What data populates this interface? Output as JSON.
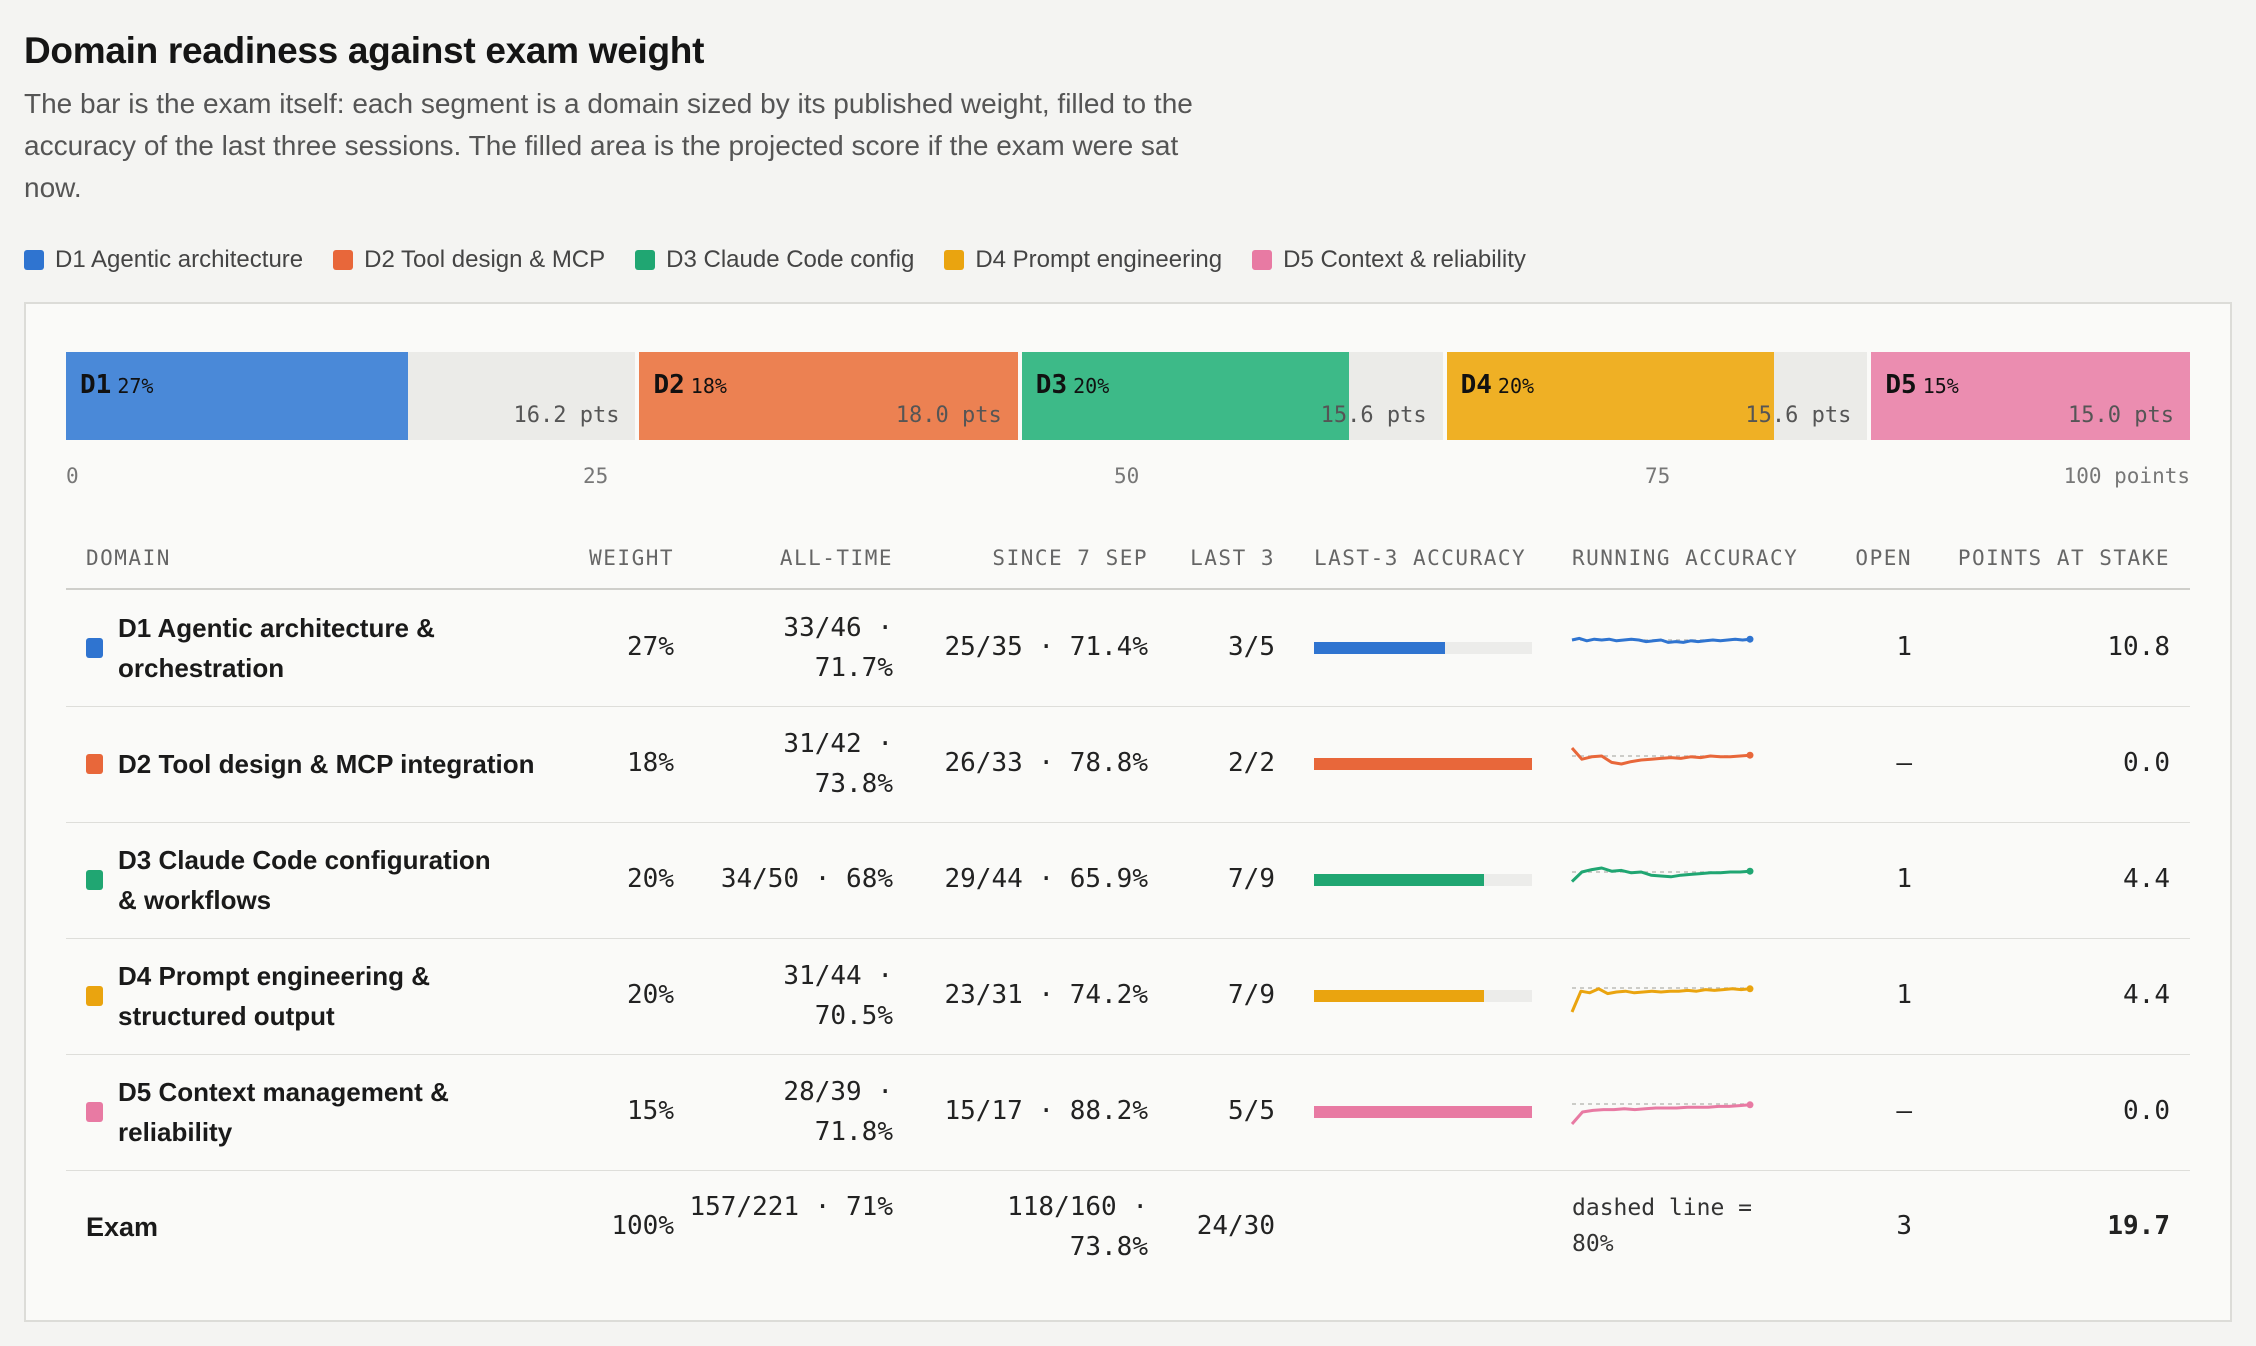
{
  "header": {
    "title": "Domain readiness against exam weight",
    "subtitle": "The bar is the exam itself: each segment is a domain sized by its published weight, filled to the accuracy of the last three sessions. The filled area is the projected score if the exam were sat now."
  },
  "legend": [
    {
      "label": "D1 Agentic architecture",
      "color": "#2f74d0"
    },
    {
      "label": "D2 Tool design & MCP",
      "color": "#e8673a"
    },
    {
      "label": "D3 Claude Code config",
      "color": "#20a672"
    },
    {
      "label": "D4 Prompt engineering",
      "color": "#eaa40f"
    },
    {
      "label": "D5 Context & reliability",
      "color": "#e87aa3"
    }
  ],
  "chart_data": {
    "type": "bar",
    "orientation": "horizontal-stacked",
    "scale": [
      0,
      100
    ],
    "axis_ticks": [
      "0",
      "25",
      "50",
      "75",
      "100 points"
    ],
    "segments": [
      {
        "code": "D1",
        "weight_label": "27%",
        "weight": 27,
        "fill_fraction": 0.6,
        "pts_label": "16.2 pts",
        "color": "#4a89d8"
      },
      {
        "code": "D2",
        "weight_label": "18%",
        "weight": 18,
        "fill_fraction": 1.0,
        "pts_label": "18.0 pts",
        "color": "#ec8152"
      },
      {
        "code": "D3",
        "weight_label": "20%",
        "weight": 20,
        "fill_fraction": 0.7778,
        "pts_label": "15.6 pts",
        "color": "#3dba88"
      },
      {
        "code": "D4",
        "weight_label": "20%",
        "weight": 20,
        "fill_fraction": 0.7778,
        "pts_label": "15.6 pts",
        "color": "#efb025"
      },
      {
        "code": "D5",
        "weight_label": "15%",
        "weight": 15,
        "fill_fraction": 1.0,
        "pts_label": "15.0 pts",
        "color": "#eb8db0"
      }
    ]
  },
  "table": {
    "headers": {
      "domain": "DOMAIN",
      "weight": "WEIGHT",
      "alltime": "ALL-TIME",
      "since": "SINCE 7 SEP",
      "last3": "LAST 3",
      "last3acc": "LAST-3 ACCURACY",
      "running": "RUNNING ACCURACY",
      "open": "OPEN",
      "points": "POINTS AT STAKE"
    },
    "rows": [
      {
        "name": "D1 Agentic architecture & orchestration",
        "color": "#2f74d0",
        "weight": "27%",
        "alltime": "33/46 · 71.7%",
        "since": "25/35 · 71.4%",
        "last3": "3/5",
        "last3_accuracy": 0.6,
        "running": [
          0.8,
          0.82,
          0.79,
          0.81,
          0.8,
          0.81,
          0.79,
          0.8,
          0.81,
          0.8,
          0.78,
          0.79,
          0.8,
          0.77,
          0.78,
          0.77,
          0.79,
          0.78,
          0.79,
          0.8,
          0.79,
          0.8,
          0.81,
          0.8,
          0.81
        ],
        "open": "1",
        "points": "10.8"
      },
      {
        "name": "D2 Tool design & MCP integration",
        "color": "#e8673a",
        "weight": "18%",
        "alltime": "31/42 · 73.8%",
        "since": "26/33 · 78.8%",
        "last3": "2/2",
        "last3_accuracy": 1.0,
        "running": [
          0.9,
          0.76,
          0.79,
          0.8,
          0.72,
          0.7,
          0.73,
          0.75,
          0.76,
          0.77,
          0.78,
          0.77,
          0.79,
          0.78,
          0.8,
          0.79,
          0.79,
          0.8,
          0.81
        ],
        "open": "–",
        "points": "0.0"
      },
      {
        "name": "D3 Claude Code configuration & workflows",
        "color": "#20a672",
        "weight": "20%",
        "alltime": "34/50 · 68%",
        "since": "29/44 · 65.9%",
        "last3": "7/9",
        "last3_accuracy": 0.7778,
        "running": [
          0.68,
          0.8,
          0.83,
          0.85,
          0.81,
          0.82,
          0.79,
          0.8,
          0.76,
          0.75,
          0.74,
          0.76,
          0.77,
          0.78,
          0.79,
          0.79,
          0.8,
          0.8,
          0.81
        ],
        "open": "1",
        "points": "4.4"
      },
      {
        "name": "D4 Prompt engineering & structured output",
        "color": "#eaa40f",
        "weight": "20%",
        "alltime": "31/44 · 70.5%",
        "since": "23/31 · 74.2%",
        "last3": "7/9",
        "last3_accuracy": 0.7778,
        "running": [
          0.5,
          0.76,
          0.74,
          0.79,
          0.73,
          0.75,
          0.76,
          0.74,
          0.75,
          0.76,
          0.75,
          0.76,
          0.76,
          0.77,
          0.76,
          0.78,
          0.77,
          0.78,
          0.79,
          0.78,
          0.79
        ],
        "open": "1",
        "points": "4.4"
      },
      {
        "name": "D5 Context management & reliability",
        "color": "#e87aa3",
        "weight": "15%",
        "alltime": "28/39 · 71.8%",
        "since": "15/17 · 88.2%",
        "last3": "5/5",
        "last3_accuracy": 1.0,
        "running": [
          0.55,
          0.7,
          0.72,
          0.73,
          0.73,
          0.74,
          0.73,
          0.74,
          0.75,
          0.75,
          0.75,
          0.76,
          0.76,
          0.76,
          0.77,
          0.77,
          0.78,
          0.79
        ],
        "open": "–",
        "points": "0.0"
      }
    ],
    "total": {
      "label": "Exam",
      "weight": "100%",
      "alltime": "157/221 · 71%",
      "since": "118/160 · 73.8%",
      "last3": "24/30",
      "note": "dashed line = 80%",
      "open": "3",
      "points": "19.7"
    }
  }
}
